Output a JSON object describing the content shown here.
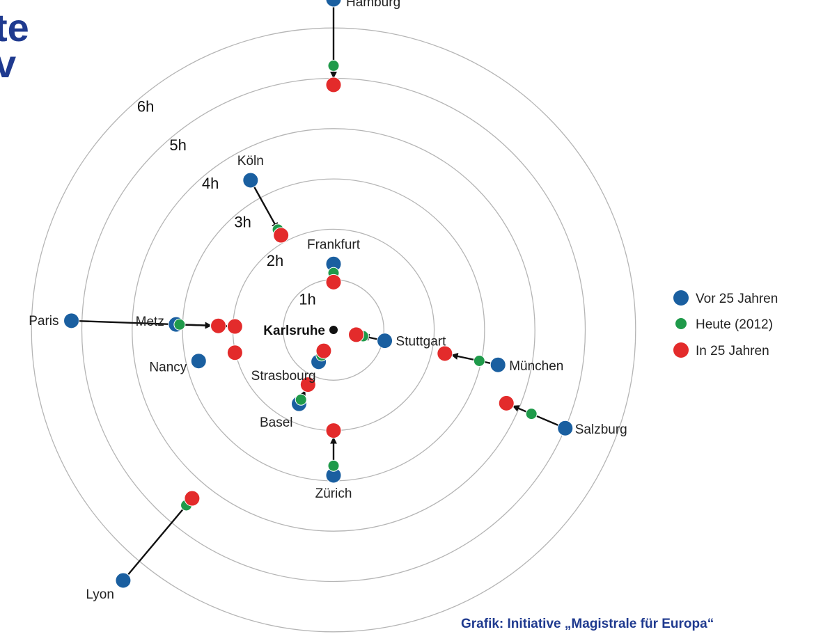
{
  "heading": {
    "line1": "te",
    "line2": "v"
  },
  "credit": "Grafik: Initiative „Magistrale für Europa“",
  "chart_data": {
    "type": "scatter",
    "center_label": "Karlsruhe",
    "ring_labels": [
      "1h",
      "2h",
      "3h",
      "4h",
      "5h",
      "6h"
    ],
    "legend": [
      {
        "label": "Vor 25 Jahren",
        "color": "#1a5fa0"
      },
      {
        "label": "Heute (2012)",
        "color": "#1f9a4a"
      },
      {
        "label": "In 25 Jahren",
        "color": "#e32b2b"
      }
    ],
    "colors": {
      "vor": "#1a5fa0",
      "heute": "#1f9a4a",
      "in": "#e32b2b",
      "ring": "#b5b5b5",
      "arrow": "#111111",
      "center": "#111111"
    },
    "cities": [
      {
        "name": "Hamburg",
        "vor": 6.57,
        "heute": 5.25,
        "in": 4.87,
        "direction": "north"
      },
      {
        "name": "Köln",
        "vor": 3.4,
        "heute": 2.28,
        "in": 2.15,
        "direction": "north-west"
      },
      {
        "name": "Frankfurt",
        "vor": 1.31,
        "heute": 1.13,
        "in": 0.95,
        "direction": "north"
      },
      {
        "name": "Metz",
        "vor": 3.13,
        "heute": 2.34,
        "in": 1.96,
        "direction": "west"
      },
      {
        "name": "Paris",
        "vor": 5.21,
        "heute": 3.06,
        "in": 2.29,
        "direction": "west"
      },
      {
        "name": "Nancy",
        "vor": 2.75,
        "heute": null,
        "in": 2.01,
        "direction": "west-south-west"
      },
      {
        "name": "Stuttgart",
        "vor": 1.04,
        "heute": 0.6,
        "in": 0.46,
        "direction": "east-south-east"
      },
      {
        "name": "Strasbourg",
        "vor": 0.7,
        "heute": 0.56,
        "in": 0.46,
        "direction": "south-south-west"
      },
      {
        "name": "Basel",
        "vor": 1.62,
        "heute": 1.53,
        "in": 1.2,
        "direction": "south-south-west"
      },
      {
        "name": "Zürich",
        "vor": 2.89,
        "heute": 2.7,
        "in": 2.0,
        "direction": "south"
      },
      {
        "name": "München",
        "vor": 3.34,
        "heute": 2.96,
        "in": 2.26,
        "direction": "east-south-east"
      },
      {
        "name": "Salzburg",
        "vor": 5.0,
        "heute": 4.27,
        "in": 3.73,
        "direction": "south-east"
      },
      {
        "name": "Lyon",
        "vor": 6.5,
        "heute": 4.55,
        "in": 4.37,
        "direction": "south-west"
      }
    ]
  }
}
